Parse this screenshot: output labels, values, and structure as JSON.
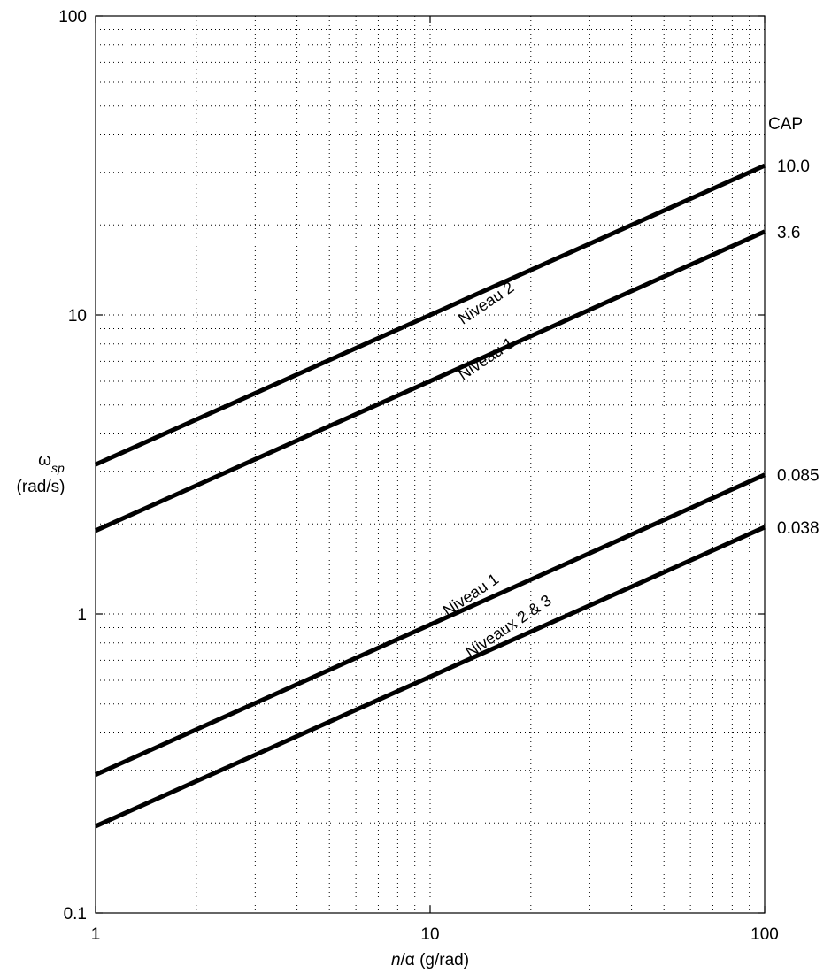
{
  "chart_data": {
    "type": "line",
    "title": "",
    "x_scale": "log",
    "y_scale": "log",
    "xlim": [
      1,
      100
    ],
    "ylim": [
      0.1,
      100
    ],
    "grid": true,
    "x_ticks": [
      1,
      10,
      100
    ],
    "y_ticks": [
      0.1,
      1,
      10,
      100
    ],
    "x_tick_labels": [
      "1",
      "10",
      "100"
    ],
    "y_tick_labels": [
      "0.1",
      "1",
      "10",
      "100"
    ],
    "xlabel": {
      "italic": "n",
      "rest": "/α (g/rad)"
    },
    "ylabel": {
      "symbol": "ω",
      "subscript": "sp",
      "line2": "(rad/s)"
    },
    "legend_title": "CAP",
    "legend_placement": "right",
    "series": [
      {
        "name": "10.0",
        "x": [
          1,
          100
        ],
        "y": [
          3.16,
          31.6
        ]
      },
      {
        "name": "3.6",
        "x": [
          1,
          100
        ],
        "y": [
          1.9,
          19.0
        ]
      },
      {
        "name": "0.085",
        "x": [
          1,
          100
        ],
        "y": [
          0.29,
          2.92
        ]
      },
      {
        "name": "0.038",
        "x": [
          1,
          100
        ],
        "y": [
          0.195,
          1.95
        ]
      }
    ],
    "annotations": [
      {
        "text": "Niveau 2",
        "x": 15,
        "y": 10.6
      },
      {
        "text": "Niveau 1",
        "x": 15,
        "y": 6.9
      },
      {
        "text": "Niveau 1",
        "x": 13.5,
        "y": 1.12
      },
      {
        "text": "Niveaux 2 & 3",
        "x": 17.5,
        "y": 0.88
      }
    ]
  }
}
